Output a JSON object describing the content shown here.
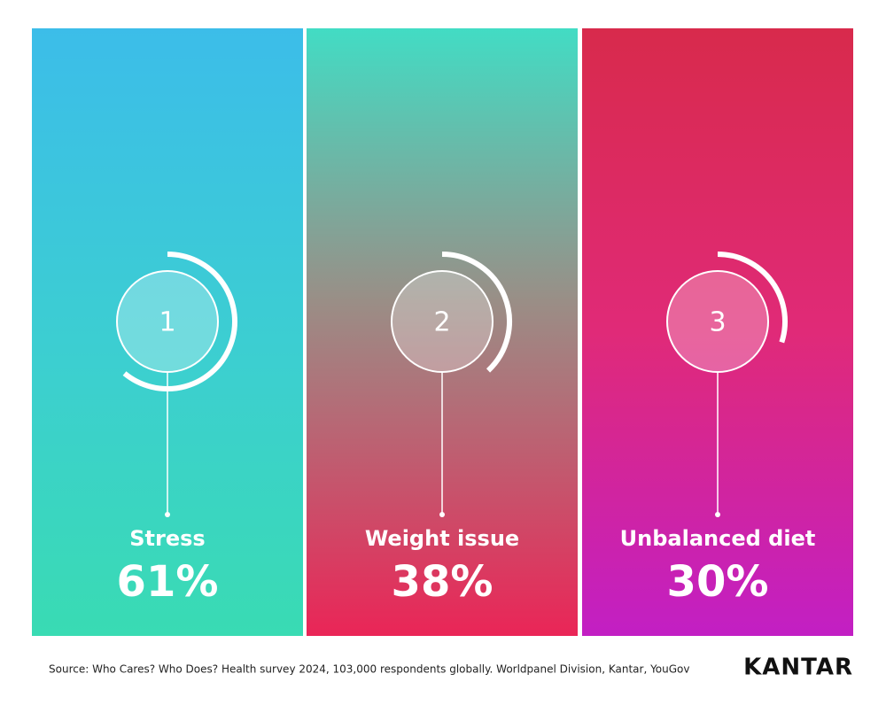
{
  "panels": [
    {
      "rank": 1,
      "label": "Stress",
      "value": 61,
      "value_label": "61%"
    },
    {
      "rank": 2,
      "label": "Weight issue",
      "value": 38,
      "value_label": "38%"
    },
    {
      "rank": 3,
      "label": "Unbalanced diet",
      "value": 30,
      "value_label": "30%"
    }
  ],
  "source": "Source: Who Cares? Who Does? Health survey 2024, 103,000 respondents globally. Worldpanel Division, Kantar, YouGov",
  "brand": "KANTAR"
}
